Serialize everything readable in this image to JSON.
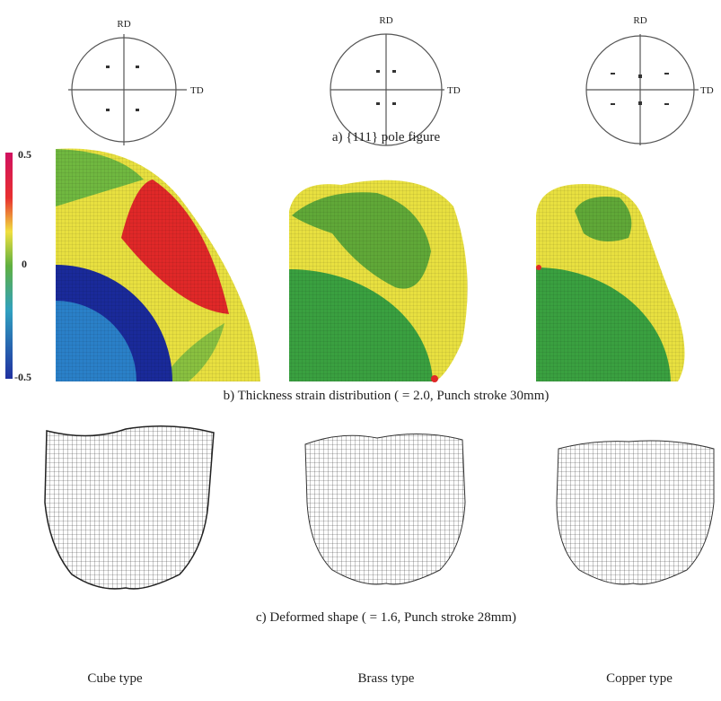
{
  "pole_figures": [
    {
      "rd": "RD",
      "td": "TD"
    },
    {
      "rd": "RD",
      "td": "TD"
    },
    {
      "rd": "RD",
      "td": "TD"
    }
  ],
  "caption_a": "a) {111} pole figure",
  "colorbar": {
    "labels": [
      "0.5",
      "0",
      "-0.5"
    ]
  },
  "caption_b": "b) Thickness strain distribution (   = 2.0, Punch stroke 30mm)",
  "caption_c": "c) Deformed shape (   = 1.6, Punch stroke 28mm)",
  "types": [
    "Cube type",
    "Brass type",
    "Copper type"
  ]
}
